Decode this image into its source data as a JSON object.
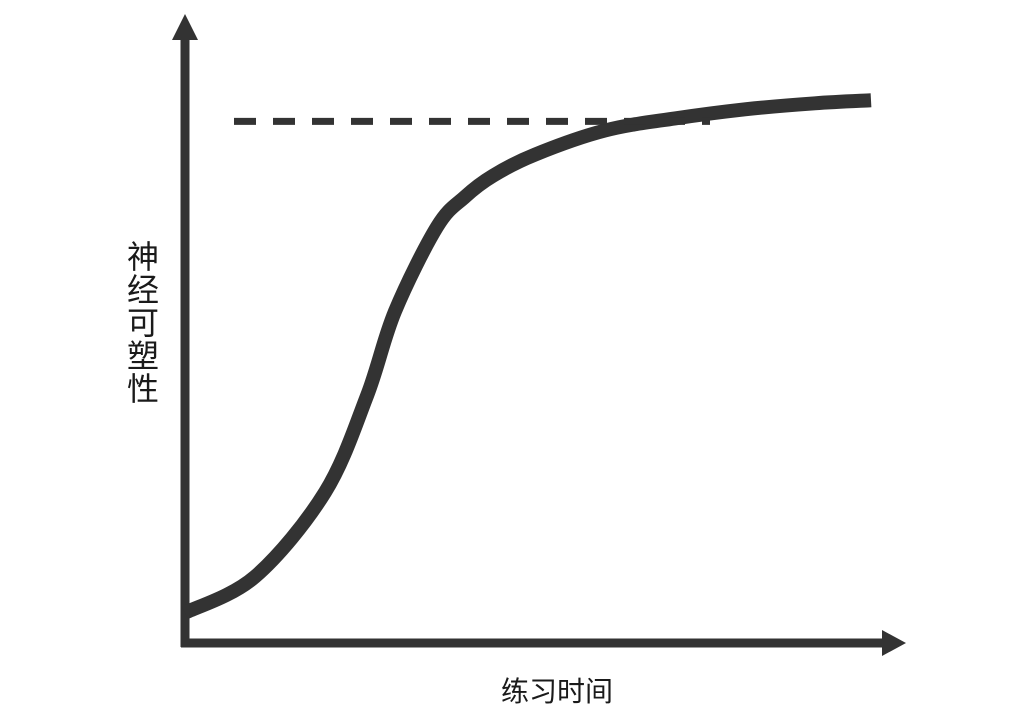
{
  "chart_data": {
    "type": "line",
    "title": "",
    "xlabel": "练习时间",
    "ylabel": "神经可塑性",
    "xlim": [
      0,
      1
    ],
    "ylim": [
      0,
      1
    ],
    "grid": false,
    "legend": "none",
    "series": [
      {
        "style": "solid",
        "color": "#333333",
        "x": [
          0.0,
          0.1,
          0.2,
          0.26,
          0.3,
          0.36,
          0.4,
          0.44,
          0.5,
          0.6,
          0.7,
          0.8,
          0.9,
          0.98
        ],
        "y": [
          0.05,
          0.11,
          0.25,
          0.41,
          0.55,
          0.69,
          0.74,
          0.775,
          0.81,
          0.85,
          0.87,
          0.885,
          0.895,
          0.9
        ]
      },
      {
        "style": "dashed",
        "color": "#333333",
        "x": [
          0.07,
          0.75
        ],
        "y": [
          0.865,
          0.865
        ]
      }
    ]
  }
}
